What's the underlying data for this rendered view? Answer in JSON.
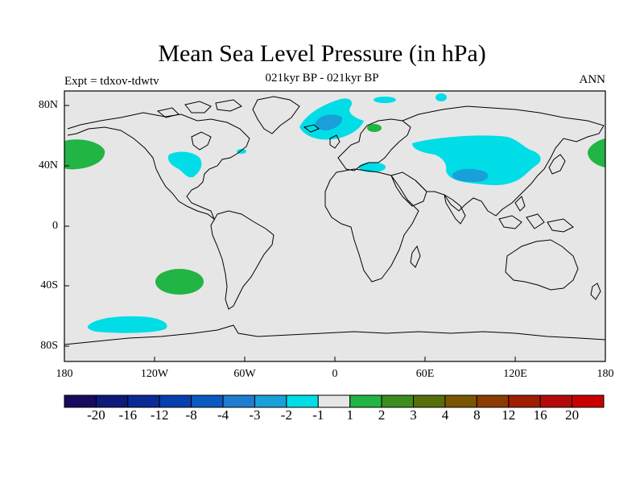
{
  "title": "Mean Sea Level Pressure (in hPa)",
  "subtitle": "021kyr BP - 021kyr BP",
  "left_label": "Expt = tdxov-tdwtv",
  "right_label": "ANN",
  "axes": {
    "y_ticks": [
      "80N",
      "40N",
      "0",
      "40S",
      "80S"
    ],
    "x_ticks": [
      "180",
      "120W",
      "60W",
      "0",
      "60E",
      "120E",
      "180"
    ]
  },
  "colorbar": {
    "labels": [
      "-20",
      "-16",
      "-12",
      "-8",
      "-4",
      "-3",
      "-2",
      "-1",
      "1",
      "2",
      "3",
      "4",
      "8",
      "12",
      "16",
      "20"
    ],
    "colors": [
      "#1a0a5e",
      "#0d1a7a",
      "#0a2a96",
      "#083fae",
      "#0a5ac0",
      "#1f7cce",
      "#1aa0d8",
      "#00dde6",
      "#e6e6e6",
      "#22b444",
      "#3c8c1e",
      "#586e0a",
      "#7a5600",
      "#8c3c00",
      "#a01e00",
      "#b40a0a",
      "#c80000"
    ]
  },
  "map_colors": {
    "background": "#e6e6e6",
    "cyan": "#00dde6",
    "blue": "#1aa0d8",
    "green": "#22b444",
    "coast": "#000000"
  }
}
